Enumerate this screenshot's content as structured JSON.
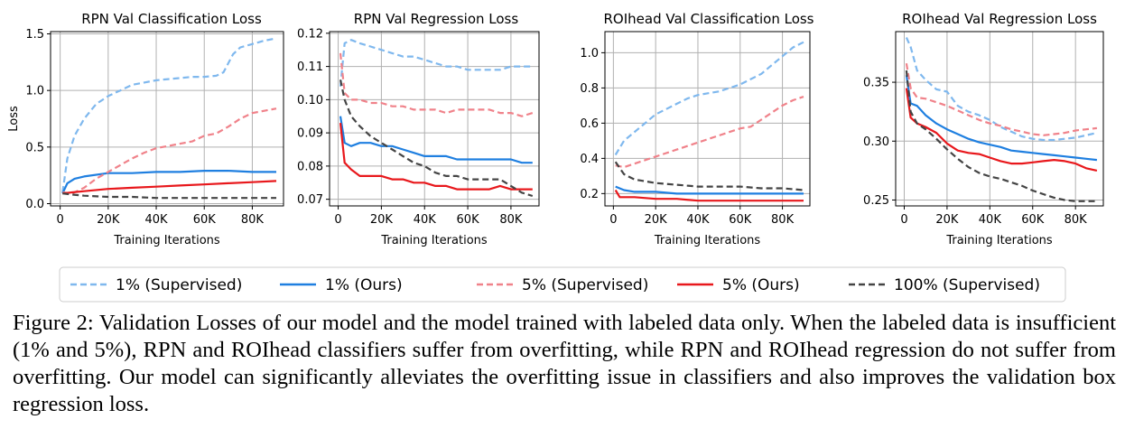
{
  "legend": [
    {
      "label": "1% (Supervised)",
      "color": "#7fb8ee",
      "dash": true
    },
    {
      "label": "1% (Ours)",
      "color": "#1f7fe0",
      "dash": false
    },
    {
      "label": "5% (Supervised)",
      "color": "#f0828a",
      "dash": true
    },
    {
      "label": "5% (Ours)",
      "color": "#e8181c",
      "dash": false
    },
    {
      "label": "100% (Supervised)",
      "color": "#444444",
      "dash": true
    }
  ],
  "caption": "Figure 2: Validation Losses of our model and the model trained with labeled data only. When the labeled data is insufficient (1% and 5%), RPN and ROIhead classifiers suffer from overfitting, while RPN and ROIhead regression do not suffer from overfitting. Our model can significantly alleviates the overfitting issue in classifiers and also improves the validation box regression loss.",
  "chart_data": [
    {
      "type": "line",
      "title": "RPN Val Classification Loss",
      "xlabel": "Training Iterations",
      "ylabel": "Loss",
      "xlim": [
        -4000,
        93000
      ],
      "ylim": [
        -0.02,
        1.52
      ],
      "xticks": [
        0,
        20000,
        40000,
        60000,
        80000
      ],
      "xtick_labels": [
        "0",
        "20K",
        "40K",
        "60K",
        "80K"
      ],
      "yticks": [
        0.0,
        0.5,
        1.0,
        1.5
      ],
      "ytick_labels": [
        "0.0",
        "0.5",
        "1.0",
        "1.5"
      ],
      "grid": true,
      "series": [
        {
          "name": "1% (Supervised)",
          "x": [
            1000,
            3000,
            6000,
            10000,
            15000,
            20000,
            25000,
            30000,
            35000,
            40000,
            45000,
            50000,
            55000,
            60000,
            65000,
            68000,
            72000,
            75000,
            80000,
            85000,
            90000
          ],
          "y": [
            0.1,
            0.4,
            0.6,
            0.75,
            0.88,
            0.95,
            1.0,
            1.05,
            1.07,
            1.09,
            1.1,
            1.11,
            1.12,
            1.12,
            1.13,
            1.16,
            1.32,
            1.38,
            1.41,
            1.44,
            1.46
          ]
        },
        {
          "name": "1% (Ours)",
          "x": [
            1000,
            3000,
            6000,
            10000,
            20000,
            30000,
            40000,
            50000,
            60000,
            70000,
            80000,
            90000
          ],
          "y": [
            0.09,
            0.18,
            0.22,
            0.24,
            0.27,
            0.27,
            0.28,
            0.28,
            0.29,
            0.29,
            0.28,
            0.28
          ]
        },
        {
          "name": "5% (Supervised)",
          "x": [
            1000,
            5000,
            10000,
            15000,
            20000,
            25000,
            30000,
            35000,
            40000,
            45000,
            50000,
            55000,
            60000,
            65000,
            70000,
            75000,
            80000,
            85000,
            90000
          ],
          "y": [
            0.1,
            0.09,
            0.14,
            0.22,
            0.28,
            0.34,
            0.4,
            0.45,
            0.49,
            0.51,
            0.53,
            0.55,
            0.6,
            0.62,
            0.68,
            0.75,
            0.8,
            0.82,
            0.84
          ]
        },
        {
          "name": "5% (Ours)",
          "x": [
            1000,
            5000,
            10000,
            20000,
            30000,
            40000,
            50000,
            60000,
            70000,
            80000,
            90000
          ],
          "y": [
            0.09,
            0.1,
            0.11,
            0.13,
            0.14,
            0.15,
            0.16,
            0.17,
            0.18,
            0.19,
            0.2
          ]
        },
        {
          "name": "100% (Supervised)",
          "x": [
            1000,
            5000,
            10000,
            20000,
            30000,
            40000,
            50000,
            60000,
            70000,
            80000,
            90000
          ],
          "y": [
            0.09,
            0.08,
            0.07,
            0.06,
            0.06,
            0.05,
            0.05,
            0.05,
            0.05,
            0.05,
            0.05
          ]
        }
      ]
    },
    {
      "type": "line",
      "title": "RPN Val Regression Loss",
      "xlabel": "Training Iterations",
      "ylabel": "",
      "xlim": [
        -4000,
        93000
      ],
      "ylim": [
        0.068,
        0.1205
      ],
      "xticks": [
        0,
        20000,
        40000,
        60000,
        80000
      ],
      "xtick_labels": [
        "0",
        "20K",
        "40K",
        "60K",
        "80K"
      ],
      "yticks": [
        0.07,
        0.08,
        0.09,
        0.1,
        0.11,
        0.12
      ],
      "ytick_labels": [
        "0.07",
        "0.08",
        "0.09",
        "0.10",
        "0.11",
        "0.12"
      ],
      "grid": true,
      "series": [
        {
          "name": "1% (Supervised)",
          "x": [
            1000,
            3000,
            6000,
            10000,
            15000,
            20000,
            25000,
            30000,
            35000,
            40000,
            45000,
            50000,
            55000,
            60000,
            65000,
            70000,
            75000,
            80000,
            85000,
            90000
          ],
          "y": [
            0.104,
            0.117,
            0.118,
            0.117,
            0.116,
            0.115,
            0.114,
            0.113,
            0.113,
            0.112,
            0.111,
            0.11,
            0.11,
            0.109,
            0.109,
            0.109,
            0.109,
            0.11,
            0.11,
            0.11
          ]
        },
        {
          "name": "1% (Ours)",
          "x": [
            1000,
            3000,
            6000,
            10000,
            15000,
            20000,
            25000,
            30000,
            35000,
            40000,
            45000,
            50000,
            55000,
            60000,
            65000,
            70000,
            75000,
            80000,
            85000,
            90000
          ],
          "y": [
            0.095,
            0.087,
            0.086,
            0.087,
            0.087,
            0.086,
            0.086,
            0.085,
            0.084,
            0.083,
            0.083,
            0.083,
            0.082,
            0.082,
            0.082,
            0.082,
            0.082,
            0.082,
            0.081,
            0.081
          ]
        },
        {
          "name": "5% (Supervised)",
          "x": [
            1000,
            3000,
            6000,
            10000,
            15000,
            20000,
            25000,
            30000,
            35000,
            40000,
            45000,
            50000,
            55000,
            60000,
            65000,
            70000,
            75000,
            80000,
            85000,
            90000
          ],
          "y": [
            0.114,
            0.102,
            0.1,
            0.1,
            0.099,
            0.099,
            0.098,
            0.098,
            0.097,
            0.097,
            0.097,
            0.096,
            0.097,
            0.097,
            0.097,
            0.097,
            0.096,
            0.096,
            0.095,
            0.096
          ]
        },
        {
          "name": "5% (Ours)",
          "x": [
            1000,
            3000,
            6000,
            10000,
            15000,
            20000,
            25000,
            30000,
            35000,
            40000,
            45000,
            50000,
            55000,
            60000,
            65000,
            70000,
            75000,
            80000,
            85000,
            90000
          ],
          "y": [
            0.093,
            0.081,
            0.079,
            0.077,
            0.077,
            0.077,
            0.076,
            0.076,
            0.075,
            0.075,
            0.074,
            0.074,
            0.073,
            0.073,
            0.073,
            0.073,
            0.074,
            0.073,
            0.073,
            0.073
          ]
        },
        {
          "name": "100% (Supervised)",
          "x": [
            1000,
            3000,
            6000,
            10000,
            15000,
            20000,
            25000,
            30000,
            35000,
            40000,
            45000,
            50000,
            55000,
            60000,
            65000,
            70000,
            75000,
            80000,
            85000,
            90000
          ],
          "y": [
            0.106,
            0.1,
            0.095,
            0.092,
            0.089,
            0.087,
            0.085,
            0.083,
            0.081,
            0.08,
            0.078,
            0.077,
            0.077,
            0.076,
            0.076,
            0.076,
            0.076,
            0.074,
            0.072,
            0.071
          ]
        }
      ]
    },
    {
      "type": "line",
      "title": "ROIhead Val Classification Loss",
      "xlabel": "Training Iterations",
      "ylabel": "",
      "xlim": [
        -4000,
        93000
      ],
      "ylim": [
        0.13,
        1.12
      ],
      "xticks": [
        0,
        20000,
        40000,
        60000,
        80000
      ],
      "xtick_labels": [
        "0",
        "20K",
        "40K",
        "60K",
        "80K"
      ],
      "yticks": [
        0.2,
        0.4,
        0.6,
        0.8,
        1.0
      ],
      "ytick_labels": [
        "0.2",
        "0.4",
        "0.6",
        "0.8",
        "1.0"
      ],
      "grid": true,
      "series": [
        {
          "name": "1% (Supervised)",
          "x": [
            1000,
            5000,
            10000,
            15000,
            20000,
            25000,
            30000,
            35000,
            40000,
            45000,
            50000,
            55000,
            60000,
            65000,
            70000,
            75000,
            80000,
            85000,
            90000
          ],
          "y": [
            0.42,
            0.5,
            0.55,
            0.6,
            0.65,
            0.68,
            0.71,
            0.74,
            0.76,
            0.77,
            0.78,
            0.8,
            0.82,
            0.85,
            0.88,
            0.93,
            0.98,
            1.03,
            1.06
          ]
        },
        {
          "name": "1% (Ours)",
          "x": [
            1000,
            5000,
            10000,
            20000,
            30000,
            40000,
            50000,
            60000,
            70000,
            80000,
            90000
          ],
          "y": [
            0.24,
            0.22,
            0.21,
            0.21,
            0.2,
            0.2,
            0.2,
            0.2,
            0.2,
            0.2,
            0.2
          ]
        },
        {
          "name": "5% (Supervised)",
          "x": [
            1000,
            5000,
            10000,
            15000,
            20000,
            25000,
            30000,
            35000,
            40000,
            45000,
            50000,
            55000,
            60000,
            65000,
            70000,
            75000,
            80000,
            85000,
            90000
          ],
          "y": [
            0.36,
            0.35,
            0.37,
            0.39,
            0.41,
            0.43,
            0.45,
            0.47,
            0.49,
            0.51,
            0.53,
            0.55,
            0.57,
            0.58,
            0.62,
            0.66,
            0.7,
            0.73,
            0.75
          ]
        },
        {
          "name": "5% (Ours)",
          "x": [
            1000,
            3000,
            10000,
            20000,
            30000,
            40000,
            50000,
            60000,
            70000,
            80000,
            90000
          ],
          "y": [
            0.22,
            0.18,
            0.18,
            0.17,
            0.17,
            0.16,
            0.16,
            0.16,
            0.16,
            0.16,
            0.16
          ]
        },
        {
          "name": "100% (Supervised)",
          "x": [
            1000,
            5000,
            10000,
            15000,
            20000,
            30000,
            40000,
            50000,
            60000,
            70000,
            80000,
            90000
          ],
          "y": [
            0.38,
            0.31,
            0.28,
            0.27,
            0.26,
            0.25,
            0.24,
            0.24,
            0.24,
            0.23,
            0.23,
            0.22
          ]
        }
      ]
    },
    {
      "type": "line",
      "title": "ROIhead Val Regression Loss",
      "xlabel": "Training Iterations",
      "ylabel": "",
      "xlim": [
        -4000,
        93000
      ],
      "ylim": [
        0.245,
        0.393
      ],
      "xticks": [
        0,
        20000,
        40000,
        60000,
        80000
      ],
      "xtick_labels": [
        "0",
        "20K",
        "40K",
        "60K",
        "80K"
      ],
      "yticks": [
        0.25,
        0.3,
        0.35
      ],
      "ytick_labels": [
        "0.25",
        "0.30",
        "0.35"
      ],
      "grid": true,
      "series": [
        {
          "name": "1% (Supervised)",
          "x": [
            1000,
            3000,
            6000,
            10000,
            15000,
            20000,
            25000,
            30000,
            35000,
            40000,
            45000,
            50000,
            55000,
            60000,
            65000,
            70000,
            75000,
            80000,
            85000,
            90000
          ],
          "y": [
            0.388,
            0.38,
            0.36,
            0.352,
            0.344,
            0.342,
            0.33,
            0.325,
            0.322,
            0.318,
            0.312,
            0.308,
            0.304,
            0.302,
            0.301,
            0.301,
            0.302,
            0.303,
            0.305,
            0.307
          ]
        },
        {
          "name": "1% (Ours)",
          "x": [
            1000,
            3000,
            6000,
            10000,
            15000,
            20000,
            25000,
            30000,
            35000,
            40000,
            45000,
            50000,
            55000,
            60000,
            65000,
            70000,
            75000,
            80000,
            85000,
            90000
          ],
          "y": [
            0.356,
            0.332,
            0.33,
            0.322,
            0.315,
            0.31,
            0.306,
            0.302,
            0.299,
            0.297,
            0.295,
            0.292,
            0.291,
            0.29,
            0.289,
            0.288,
            0.287,
            0.286,
            0.285,
            0.284
          ]
        },
        {
          "name": "5% (Supervised)",
          "x": [
            1000,
            3000,
            6000,
            10000,
            15000,
            20000,
            25000,
            30000,
            35000,
            40000,
            45000,
            50000,
            55000,
            60000,
            65000,
            70000,
            75000,
            80000,
            85000,
            90000
          ],
          "y": [
            0.366,
            0.345,
            0.337,
            0.336,
            0.333,
            0.33,
            0.326,
            0.322,
            0.318,
            0.315,
            0.313,
            0.31,
            0.308,
            0.306,
            0.305,
            0.306,
            0.307,
            0.309,
            0.31,
            0.311
          ]
        },
        {
          "name": "5% (Ours)",
          "x": [
            1000,
            3000,
            6000,
            10000,
            15000,
            20000,
            25000,
            30000,
            35000,
            40000,
            45000,
            50000,
            55000,
            60000,
            65000,
            70000,
            75000,
            80000,
            85000,
            90000
          ],
          "y": [
            0.345,
            0.32,
            0.315,
            0.312,
            0.307,
            0.298,
            0.292,
            0.29,
            0.289,
            0.286,
            0.283,
            0.281,
            0.281,
            0.282,
            0.283,
            0.284,
            0.283,
            0.281,
            0.277,
            0.275
          ]
        },
        {
          "name": "100% (Supervised)",
          "x": [
            1000,
            3000,
            6000,
            10000,
            15000,
            20000,
            25000,
            30000,
            35000,
            40000,
            45000,
            50000,
            55000,
            60000,
            65000,
            70000,
            75000,
            80000,
            85000,
            90000
          ],
          "y": [
            0.36,
            0.325,
            0.315,
            0.31,
            0.302,
            0.293,
            0.285,
            0.278,
            0.273,
            0.27,
            0.268,
            0.265,
            0.262,
            0.258,
            0.255,
            0.252,
            0.25,
            0.249,
            0.249,
            0.249
          ]
        }
      ]
    }
  ]
}
